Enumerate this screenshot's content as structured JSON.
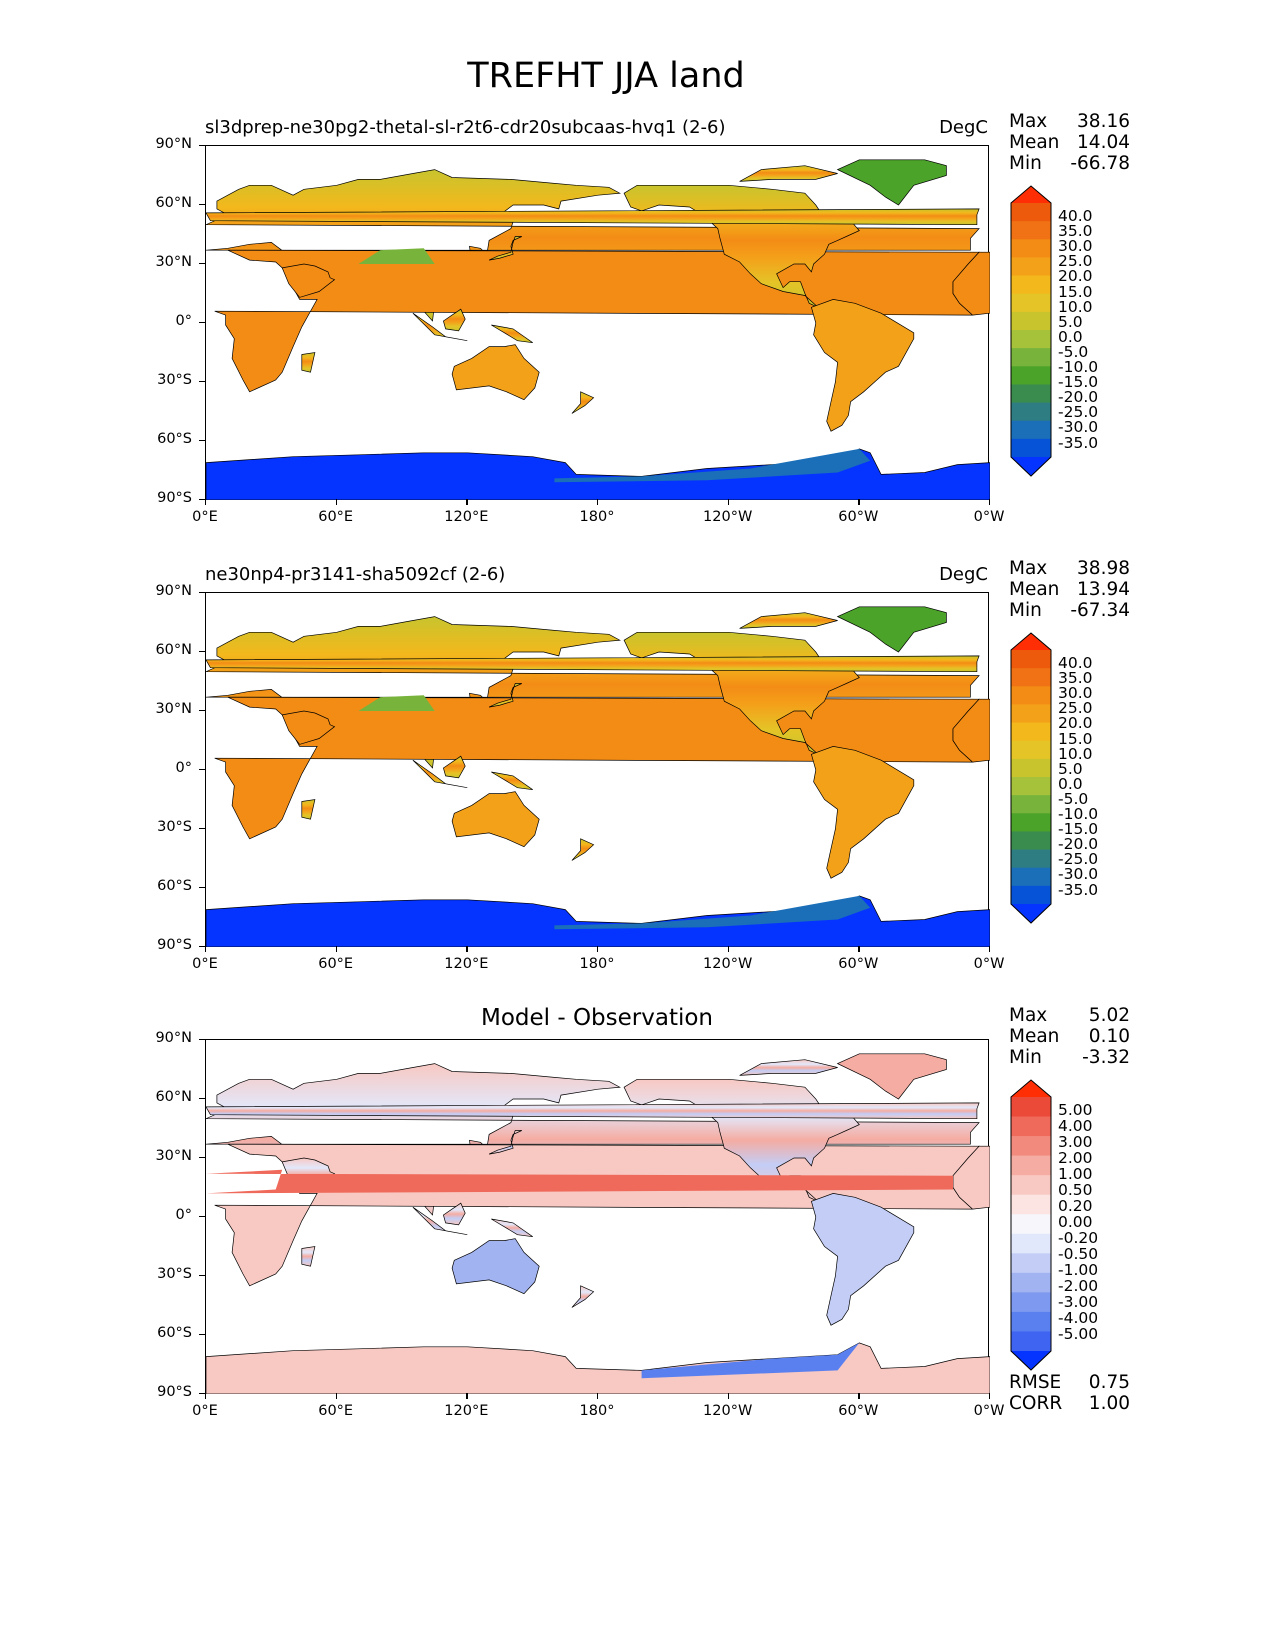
{
  "title": "TREFHT JJA land",
  "panels": [
    {
      "title_left": "sl3dprep-ne30pg2-thetal-sl-r2t6-cdr20subcaas-hvq1 (2-6)",
      "title_right": "DegC",
      "title_center": "",
      "stats": [
        {
          "label": "Max",
          "value": "38.16"
        },
        {
          "label": "Mean",
          "value": "14.04"
        },
        {
          "label": "Min",
          "value": "-66.78"
        }
      ],
      "colorbar_levels": [
        "40.0",
        "35.0",
        "30.0",
        "25.0",
        "20.0",
        "15.0",
        "10.0",
        "5.0",
        "0.0",
        "-5.0",
        "-10.0",
        "-15.0",
        "-20.0",
        "-25.0",
        "-30.0",
        "-35.0"
      ],
      "extra_stats": []
    },
    {
      "title_left": "ne30np4-pr3141-sha5092cf (2-6)",
      "title_right": "DegC",
      "title_center": "",
      "stats": [
        {
          "label": "Max",
          "value": "38.98"
        },
        {
          "label": "Mean",
          "value": "13.94"
        },
        {
          "label": "Min",
          "value": "-67.34"
        }
      ],
      "colorbar_levels": [
        "40.0",
        "35.0",
        "30.0",
        "25.0",
        "20.0",
        "15.0",
        "10.0",
        "5.0",
        "0.0",
        "-5.0",
        "-10.0",
        "-15.0",
        "-20.0",
        "-25.0",
        "-30.0",
        "-35.0"
      ],
      "extra_stats": []
    },
    {
      "title_left": "",
      "title_right": "",
      "title_center": "Model - Observation",
      "stats": [
        {
          "label": "Max",
          "value": "5.02"
        },
        {
          "label": "Mean",
          "value": "0.10"
        },
        {
          "label": "Min",
          "value": "-3.32"
        }
      ],
      "colorbar_levels": [
        "5.00",
        "4.00",
        "3.00",
        "2.00",
        "1.00",
        "0.50",
        "0.20",
        "0.00",
        "-0.20",
        "-0.50",
        "-1.00",
        "-2.00",
        "-3.00",
        "-4.00",
        "-5.00"
      ],
      "extra_stats": [
        {
          "label": "RMSE",
          "value": "0.75"
        },
        {
          "label": "CORR",
          "value": "1.00"
        }
      ]
    }
  ],
  "axes": {
    "lat_ticks": [
      "90°N",
      "60°N",
      "30°N",
      "0°",
      "30°S",
      "60°S",
      "90°S"
    ],
    "lon_ticks": [
      "0°E",
      "60°E",
      "120°E",
      "180°",
      "120°W",
      "60°W",
      "0°W"
    ]
  },
  "colors": {
    "temp_scale": [
      "#0533ff",
      "#0753d8",
      "#1a6fb8",
      "#2e7d82",
      "#3a8c4e",
      "#4ba32a",
      "#78b43c",
      "#a6c13a",
      "#c8c42e",
      "#e4c427",
      "#f3b81c",
      "#f4a11a",
      "#f38c15",
      "#f07214",
      "#ed5a0c",
      "#ff2e05"
    ],
    "diff_scale": [
      "#0533ff",
      "#3f64f2",
      "#5a80f0",
      "#7d99f0",
      "#a2b3f1",
      "#c3cdf6",
      "#e2e8fb",
      "#f6f6fb",
      "#fbe4e2",
      "#f8c8c2",
      "#f5aca2",
      "#f28b7e",
      "#ef6a5b",
      "#ec4a38",
      "#ff2e05"
    ]
  }
}
